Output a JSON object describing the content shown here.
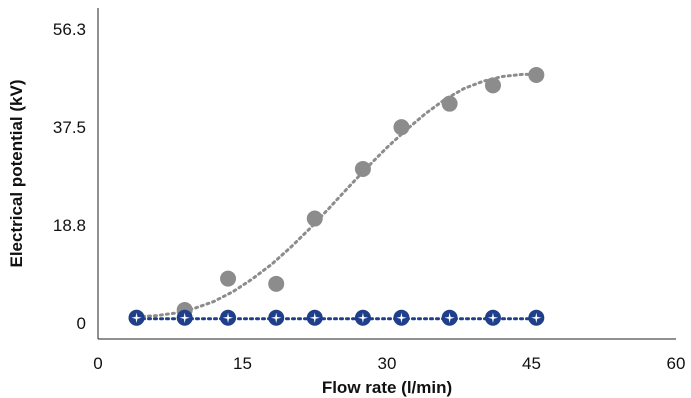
{
  "chart_data": {
    "type": "scatter",
    "title": "",
    "xlabel": "Flow rate (l/min)",
    "ylabel": "Electrical potential (kV)",
    "xlim": [
      0,
      60
    ],
    "ylim": [
      0,
      56.3
    ],
    "xticks": [
      "0",
      "15",
      "30",
      "45",
      "60"
    ],
    "xtick_values": [
      0,
      15,
      30,
      45,
      60
    ],
    "yticks": [
      "0",
      "18.8",
      "37.5",
      "56.3"
    ],
    "ytick_values": [
      0,
      18.8,
      37.5,
      56.3
    ],
    "grid": false,
    "legend": "none",
    "series": [
      {
        "color": "#8c8c8c",
        "marker": "circle",
        "x": [
          4,
          9,
          13.5,
          18.5,
          22.5,
          27.5,
          31.5,
          36.5,
          41,
          45.5
        ],
        "y": [
          1,
          2.5,
          8.5,
          7.5,
          20,
          29.5,
          37.5,
          42,
          45.5,
          47.5
        ],
        "trendline": {
          "style": "dotted",
          "color": "#8c8c8c",
          "x": [
            4,
            6,
            8,
            10,
            12,
            14,
            16,
            18,
            20,
            22,
            24,
            26,
            28,
            30,
            32,
            34,
            36,
            38,
            40,
            42,
            44,
            45.5
          ],
          "y": [
            1.2,
            1.4,
            1.9,
            2.8,
            4.1,
            6,
            8.4,
            11.2,
            14.5,
            18.1,
            22,
            26,
            29.9,
            33.6,
            37,
            40.1,
            42.8,
            44.9,
            46.3,
            47.2,
            47.6,
            47.6
          ]
        }
      },
      {
        "color": "#1f3f8a",
        "marker": "circle-with-white-star",
        "x": [
          4,
          9,
          13.5,
          18.5,
          22.5,
          27.5,
          31.5,
          36.5,
          41,
          45.5
        ],
        "y": [
          1,
          1,
          1,
          1,
          1,
          1,
          1,
          1,
          1,
          1
        ],
        "trendline": {
          "style": "dotted",
          "color": "#1f3f8a",
          "x": [
            4,
            45.5
          ],
          "y": [
            0.8,
            0.8
          ]
        }
      }
    ]
  }
}
